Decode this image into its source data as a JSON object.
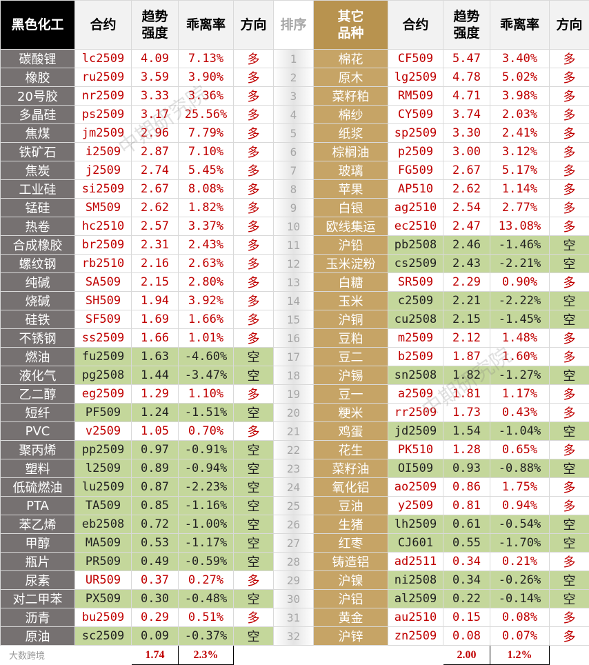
{
  "header": {
    "left": [
      "黑色化工",
      "合约",
      "趋势\n强度",
      "乖离率",
      "方向"
    ],
    "rank": "排序",
    "right": [
      "其它\n品种",
      "合约",
      "趋势\n强度",
      "乖离率",
      "方向"
    ]
  },
  "rows": [
    {
      "rank": 1,
      "left": [
        "碳酸锂",
        "lc2509",
        "4.09",
        "7.13%",
        "多"
      ],
      "right": [
        "棉花",
        "CF509",
        "5.47",
        "3.40%",
        "多"
      ]
    },
    {
      "rank": 2,
      "left": [
        "橡胶",
        "ru2509",
        "3.59",
        "3.90%",
        "多"
      ],
      "right": [
        "原木",
        "lg2509",
        "4.78",
        "5.02%",
        "多"
      ]
    },
    {
      "rank": 3,
      "left": [
        "20号胶",
        "nr2509",
        "3.33",
        "3.36%",
        "多"
      ],
      "right": [
        "菜籽粕",
        "RM509",
        "4.71",
        "3.98%",
        "多"
      ]
    },
    {
      "rank": 4,
      "left": [
        "多晶硅",
        "ps2509",
        "3.17",
        "25.56%",
        "多"
      ],
      "right": [
        "棉纱",
        "CY509",
        "3.74",
        "2.03%",
        "多"
      ]
    },
    {
      "rank": 5,
      "left": [
        "焦煤",
        "jm2509",
        "2.96",
        "7.79%",
        "多"
      ],
      "right": [
        "纸浆",
        "sp2509",
        "3.30",
        "2.41%",
        "多"
      ]
    },
    {
      "rank": 6,
      "left": [
        "铁矿石",
        "i2509",
        "2.87",
        "7.10%",
        "多"
      ],
      "right": [
        "棕榈油",
        "p2509",
        "3.00",
        "3.12%",
        "多"
      ]
    },
    {
      "rank": 7,
      "left": [
        "焦炭",
        "j2509",
        "2.74",
        "5.45%",
        "多"
      ],
      "right": [
        "玻璃",
        "FG509",
        "2.67",
        "5.17%",
        "多"
      ]
    },
    {
      "rank": 8,
      "left": [
        "工业硅",
        "si2509",
        "2.67",
        "8.08%",
        "多"
      ],
      "right": [
        "苹果",
        "AP510",
        "2.62",
        "1.14%",
        "多"
      ]
    },
    {
      "rank": 9,
      "left": [
        "锰硅",
        "SM509",
        "2.62",
        "1.82%",
        "多"
      ],
      "right": [
        "白银",
        "ag2510",
        "2.54",
        "2.77%",
        "多"
      ]
    },
    {
      "rank": 10,
      "left": [
        "热卷",
        "hc2510",
        "2.57",
        "3.37%",
        "多"
      ],
      "right": [
        "欧线集运",
        "ec2510",
        "2.47",
        "13.08%",
        "多"
      ]
    },
    {
      "rank": 11,
      "left": [
        "合成橡胶",
        "br2509",
        "2.31",
        "2.43%",
        "多"
      ],
      "right": [
        "沪铅",
        "pb2508",
        "2.46",
        "-1.46%",
        "空"
      ]
    },
    {
      "rank": 12,
      "left": [
        "螺纹钢",
        "rb2510",
        "2.16",
        "2.63%",
        "多"
      ],
      "right": [
        "玉米淀粉",
        "cs2509",
        "2.43",
        "-2.21%",
        "空"
      ]
    },
    {
      "rank": 13,
      "left": [
        "纯碱",
        "SA509",
        "2.15",
        "2.80%",
        "多"
      ],
      "right": [
        "白糖",
        "SR509",
        "2.29",
        "0.90%",
        "多"
      ]
    },
    {
      "rank": 14,
      "left": [
        "烧碱",
        "SH509",
        "1.94",
        "3.92%",
        "多"
      ],
      "right": [
        "玉米",
        "c2509",
        "2.21",
        "-2.22%",
        "空"
      ]
    },
    {
      "rank": 15,
      "left": [
        "硅铁",
        "SF509",
        "1.69",
        "1.66%",
        "多"
      ],
      "right": [
        "沪铜",
        "cu2508",
        "2.15",
        "-1.45%",
        "空"
      ]
    },
    {
      "rank": 16,
      "left": [
        "不锈钢",
        "ss2509",
        "1.66",
        "1.01%",
        "多"
      ],
      "right": [
        "豆粕",
        "m2509",
        "2.12",
        "1.48%",
        "多"
      ]
    },
    {
      "rank": 17,
      "left": [
        "燃油",
        "fu2509",
        "1.63",
        "-4.60%",
        "空"
      ],
      "right": [
        "豆二",
        "b2509",
        "1.87",
        "1.60%",
        "多"
      ]
    },
    {
      "rank": 18,
      "left": [
        "液化气",
        "pg2508",
        "1.44",
        "-3.47%",
        "空"
      ],
      "right": [
        "沪锡",
        "sn2508",
        "1.82",
        "-1.27%",
        "空"
      ]
    },
    {
      "rank": 19,
      "left": [
        "乙二醇",
        "eg2509",
        "1.29",
        "1.10%",
        "多"
      ],
      "right": [
        "豆一",
        "a2509",
        "1.81",
        "1.17%",
        "多"
      ]
    },
    {
      "rank": 20,
      "left": [
        "短纤",
        "PF509",
        "1.24",
        "-1.51%",
        "空"
      ],
      "right": [
        "粳米",
        "rr2509",
        "1.73",
        "0.43%",
        "多"
      ]
    },
    {
      "rank": 21,
      "left": [
        "PVC",
        "v2509",
        "1.05",
        "0.70%",
        "多"
      ],
      "right": [
        "鸡蛋",
        "jd2509",
        "1.54",
        "-1.04%",
        "空"
      ]
    },
    {
      "rank": 22,
      "left": [
        "聚丙烯",
        "pp2509",
        "0.97",
        "-0.91%",
        "空"
      ],
      "right": [
        "花生",
        "PK510",
        "1.28",
        "0.65%",
        "多"
      ]
    },
    {
      "rank": 23,
      "left": [
        "塑料",
        "l2509",
        "0.89",
        "-0.94%",
        "空"
      ],
      "right": [
        "菜籽油",
        "OI509",
        "0.93",
        "-0.88%",
        "空"
      ]
    },
    {
      "rank": 24,
      "left": [
        "低硫燃油",
        "lu2509",
        "0.87",
        "-2.23%",
        "空"
      ],
      "right": [
        "氧化铝",
        "ao2509",
        "0.86",
        "1.75%",
        "多"
      ]
    },
    {
      "rank": 25,
      "left": [
        "PTA",
        "TA509",
        "0.85",
        "-1.16%",
        "空"
      ],
      "right": [
        "豆油",
        "y2509",
        "0.81",
        "0.94%",
        "多"
      ]
    },
    {
      "rank": 26,
      "left": [
        "苯乙烯",
        "eb2508",
        "0.72",
        "-1.00%",
        "空"
      ],
      "right": [
        "生猪",
        "lh2509",
        "0.61",
        "-0.54%",
        "空"
      ]
    },
    {
      "rank": 27,
      "left": [
        "甲醇",
        "MA509",
        "0.53",
        "-1.17%",
        "空"
      ],
      "right": [
        "红枣",
        "CJ601",
        "0.55",
        "-1.70%",
        "空"
      ]
    },
    {
      "rank": 28,
      "left": [
        "瓶片",
        "PR509",
        "0.49",
        "-0.59%",
        "空"
      ],
      "right": [
        "铸造铝",
        "ad2511",
        "0.34",
        "0.21%",
        "多"
      ]
    },
    {
      "rank": 29,
      "left": [
        "尿素",
        "UR509",
        "0.37",
        "0.27%",
        "多"
      ],
      "right": [
        "沪镍",
        "ni2508",
        "0.34",
        "-0.26%",
        "空"
      ]
    },
    {
      "rank": 30,
      "left": [
        "对二甲苯",
        "PX509",
        "0.30",
        "-0.48%",
        "空"
      ],
      "right": [
        "沪铝",
        "al2509",
        "0.22",
        "-0.14%",
        "空"
      ]
    },
    {
      "rank": 31,
      "left": [
        "沥青",
        "bu2509",
        "0.29",
        "0.51%",
        "多"
      ],
      "right": [
        "黄金",
        "au2510",
        "0.15",
        "0.08%",
        "多"
      ]
    },
    {
      "rank": 32,
      "left": [
        "原油",
        "sc2509",
        "0.09",
        "-0.37%",
        "空"
      ],
      "right": [
        "沪锌",
        "zn2509",
        "0.08",
        "0.07%",
        "多"
      ]
    }
  ],
  "footer": {
    "logo": "大数跨境",
    "left": [
      "1.74",
      "2.3%"
    ],
    "right": [
      "2.00",
      "1.2%"
    ]
  },
  "watermark": "中期研究院"
}
